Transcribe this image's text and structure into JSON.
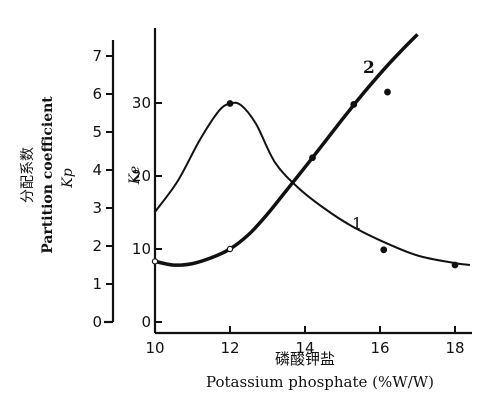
{
  "chart_data": {
    "type": "line",
    "xlabel_cn": "磷酸钾盐",
    "xlabel": "Potassium phosphate (%W/W)",
    "y_left_label_cn": "分配系数",
    "y_left_label_en": "Partition coefficient",
    "y_left_symbol": "Kp",
    "y_right_symbol": "Ke",
    "xlim": [
      10,
      18.5
    ],
    "x_ticks": [
      "10",
      "12",
      "14",
      "16",
      "18"
    ],
    "y_left_lim": [
      0,
      7.5
    ],
    "y_left_ticks": [
      "0",
      "1",
      "2",
      "3",
      "4",
      "5",
      "6",
      "7"
    ],
    "y_right_lim": [
      0,
      38
    ],
    "y_right_ticks": [
      "0",
      "10",
      "20",
      "30"
    ],
    "grid": false,
    "series": [
      {
        "name": "1",
        "axis": "left",
        "curve": [
          {
            "x": 10.0,
            "y": 2.9
          },
          {
            "x": 10.6,
            "y": 3.7
          },
          {
            "x": 11.2,
            "y": 4.8
          },
          {
            "x": 11.7,
            "y": 5.55
          },
          {
            "x": 12.0,
            "y": 5.75
          },
          {
            "x": 12.3,
            "y": 5.7
          },
          {
            "x": 12.7,
            "y": 5.2
          },
          {
            "x": 13.2,
            "y": 4.2
          },
          {
            "x": 13.8,
            "y": 3.55
          },
          {
            "x": 14.5,
            "y": 3.0
          },
          {
            "x": 15.2,
            "y": 2.55
          },
          {
            "x": 16.0,
            "y": 2.15
          },
          {
            "x": 17.0,
            "y": 1.75
          },
          {
            "x": 18.0,
            "y": 1.55
          },
          {
            "x": 18.4,
            "y": 1.5
          }
        ],
        "points": [
          {
            "x": 12.0,
            "y": 5.75,
            "style": "filled"
          },
          {
            "x": 16.1,
            "y": 1.9,
            "style": "filled"
          },
          {
            "x": 18.0,
            "y": 1.5,
            "style": "filled"
          }
        ]
      },
      {
        "name": "2",
        "axis": "right",
        "curve": [
          {
            "x": 10.0,
            "y": 8.3
          },
          {
            "x": 10.5,
            "y": 7.8
          },
          {
            "x": 11.0,
            "y": 8.0
          },
          {
            "x": 11.5,
            "y": 8.8
          },
          {
            "x": 12.0,
            "y": 10.0
          },
          {
            "x": 12.5,
            "y": 12.0
          },
          {
            "x": 13.0,
            "y": 14.8
          },
          {
            "x": 13.5,
            "y": 18.0
          },
          {
            "x": 14.0,
            "y": 21.2
          },
          {
            "x": 14.5,
            "y": 24.5
          },
          {
            "x": 15.0,
            "y": 27.8
          },
          {
            "x": 15.5,
            "y": 31.0
          },
          {
            "x": 16.0,
            "y": 34.0
          },
          {
            "x": 16.5,
            "y": 36.8
          },
          {
            "x": 17.0,
            "y": 39.4
          }
        ],
        "points": [
          {
            "x": 10.0,
            "y": 8.3,
            "style": "open"
          },
          {
            "x": 12.0,
            "y": 10.0,
            "style": "open"
          },
          {
            "x": 14.2,
            "y": 22.5,
            "style": "filled"
          },
          {
            "x": 15.3,
            "y": 29.8,
            "style": "filled"
          },
          {
            "x": 16.2,
            "y": 31.5,
            "style": "filled"
          }
        ]
      }
    ]
  }
}
